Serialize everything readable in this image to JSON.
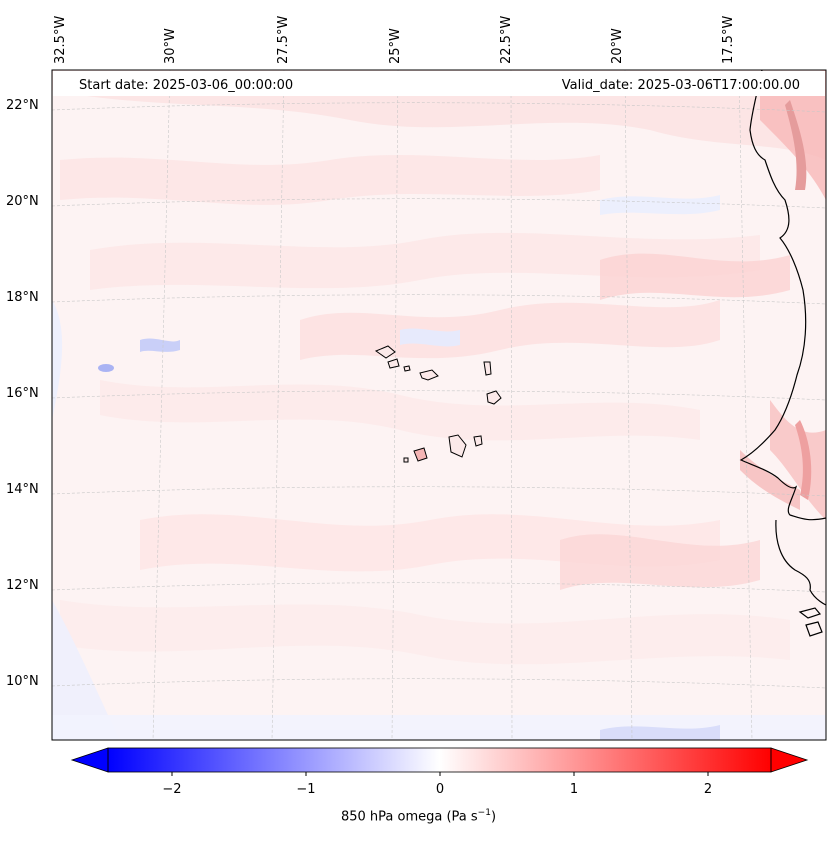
{
  "header": {
    "start_label": "Start date: 2025-03-06_00:00:00",
    "valid_label": "Valid_date: 2025-03-06T17:00:00.00"
  },
  "longitude_labels": [
    "32.5°W",
    "30°W",
    "27.5°W",
    "25°W",
    "22.5°W",
    "20°W",
    "17.5°W"
  ],
  "latitude_labels": [
    "22°N",
    "20°N",
    "18°N",
    "16°N",
    "14°N",
    "12°N",
    "10°N"
  ],
  "colorbar": {
    "label": "850 hPa omega (Pa s",
    "label_sup": "−1",
    "label_end": ")",
    "ticks": [
      "−2",
      "−1",
      "0",
      "1",
      "2"
    ],
    "range": [
      -2.5,
      2.5
    ],
    "colors": {
      "negative": "#0000ff",
      "zero": "#ffffff",
      "positive": "#ff0000"
    }
  },
  "map": {
    "region": "Cape Verde / West African coast",
    "field": "850 hPa omega",
    "coastline_color": "#000000"
  }
}
